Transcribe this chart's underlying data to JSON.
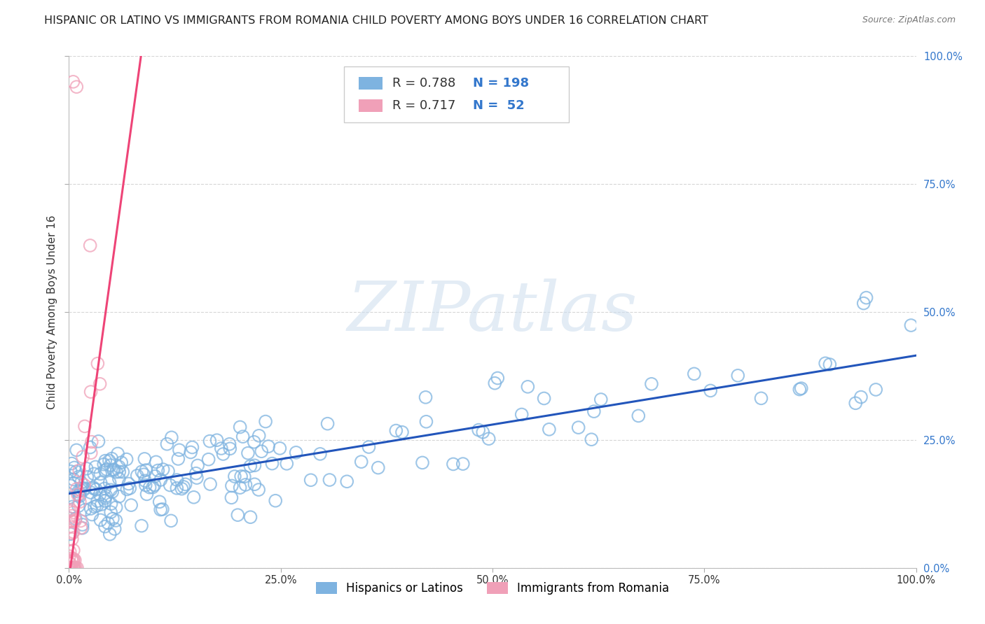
{
  "title": "HISPANIC OR LATINO VS IMMIGRANTS FROM ROMANIA CHILD POVERTY AMONG BOYS UNDER 16 CORRELATION CHART",
  "source": "Source: ZipAtlas.com",
  "ylabel": "Child Poverty Among Boys Under 16",
  "watermark": "ZIPatlas",
  "blue_R": 0.788,
  "blue_N": 198,
  "pink_R": 0.717,
  "pink_N": 52,
  "blue_label": "Hispanics or Latinos",
  "pink_label": "Immigrants from Romania",
  "blue_color": "#7EB3E0",
  "pink_color": "#F0A0B8",
  "blue_line_color": "#2255BB",
  "pink_line_color": "#EE4477",
  "background_color": "#FFFFFF",
  "title_fontsize": 11.5,
  "axis_label_fontsize": 11,
  "tick_label_fontsize": 10.5,
  "watermark_fontsize": 72,
  "xlim": [
    0,
    1
  ],
  "ylim": [
    0,
    1
  ],
  "xticks": [
    0,
    0.25,
    0.5,
    0.75,
    1.0
  ],
  "yticks": [
    0,
    0.25,
    0.5,
    0.75,
    1.0
  ],
  "xtick_labels": [
    "0.0%",
    "25.0%",
    "50.0%",
    "75.0%",
    "100.0%"
  ],
  "ytick_labels": [
    "0.0%",
    "25.0%",
    "50.0%",
    "75.0%",
    "100.0%"
  ],
  "blue_intercept": 0.145,
  "blue_slope": 0.27,
  "pink_intercept": -0.02,
  "pink_slope": 12.0
}
